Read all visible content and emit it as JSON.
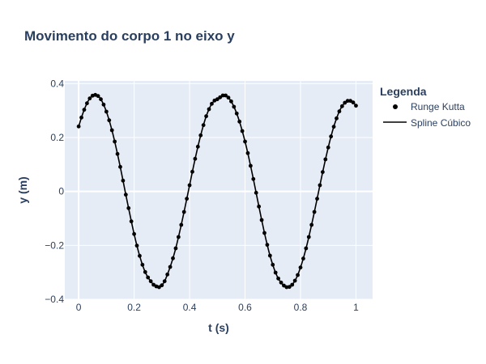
{
  "chart_data": {
    "type": "line",
    "title": "Movimento do corpo 1 no eixo y",
    "xlabel": "t (s)",
    "ylabel": "y (m)",
    "xlim": [
      -0.05,
      1.06
    ],
    "ylim": [
      -0.4,
      0.41
    ],
    "xticks": [
      0,
      0.2,
      0.4,
      0.6,
      0.8,
      1
    ],
    "xtick_labels": [
      "0",
      "0.2",
      "0.4",
      "0.6",
      "0.8",
      "1"
    ],
    "yticks": [
      -0.4,
      -0.2,
      0,
      0.2,
      0.4
    ],
    "ytick_labels": [
      "−0.4",
      "−0.2",
      "0",
      "0.2",
      "0.4"
    ],
    "grid": true,
    "legend": {
      "title": "Legenda",
      "placement": "top-right"
    },
    "colors": {
      "plot_background": "#e5ecf6",
      "gridline": "#ffffff",
      "series": "#000000",
      "text": "#2a3f5f"
    },
    "series": [
      {
        "name": "Runge Kutta",
        "mode": "markers",
        "x": [
          0.0,
          0.01,
          0.02,
          0.03,
          0.04,
          0.05,
          0.06,
          0.07,
          0.08,
          0.09,
          0.1,
          0.11,
          0.12,
          0.13,
          0.14,
          0.15,
          0.16,
          0.17,
          0.18,
          0.19,
          0.2,
          0.21,
          0.22,
          0.23,
          0.24,
          0.25,
          0.26,
          0.27,
          0.28,
          0.29,
          0.3,
          0.31,
          0.32,
          0.33,
          0.34,
          0.35,
          0.36,
          0.37,
          0.38,
          0.39,
          0.4,
          0.41,
          0.42,
          0.43,
          0.44,
          0.45,
          0.46,
          0.47,
          0.48,
          0.49,
          0.5,
          0.51,
          0.52,
          0.53,
          0.54,
          0.55,
          0.56,
          0.57,
          0.58,
          0.59,
          0.6,
          0.61,
          0.62,
          0.63,
          0.64,
          0.65,
          0.66,
          0.67,
          0.68,
          0.69,
          0.7,
          0.71,
          0.72,
          0.73,
          0.74,
          0.75,
          0.76,
          0.77,
          0.78,
          0.79,
          0.8,
          0.81,
          0.82,
          0.83,
          0.84,
          0.85,
          0.86,
          0.87,
          0.88,
          0.89,
          0.9,
          0.91,
          0.92,
          0.93,
          0.94,
          0.95,
          0.96,
          0.97,
          0.98,
          0.99,
          1.0
        ],
        "y": [
          0.241,
          0.274,
          0.303,
          0.327,
          0.345,
          0.355,
          0.358,
          0.354,
          0.342,
          0.322,
          0.296,
          0.264,
          0.227,
          0.185,
          0.139,
          0.091,
          0.04,
          -0.012,
          -0.062,
          -0.111,
          -0.158,
          -0.201,
          -0.239,
          -0.272,
          -0.299,
          -0.319,
          -0.333,
          -0.346,
          -0.352,
          -0.355,
          -0.348,
          -0.333,
          -0.308,
          -0.28,
          -0.248,
          -0.211,
          -0.169,
          -0.124,
          -0.076,
          -0.027,
          0.023,
          0.073,
          0.121,
          0.166,
          0.208,
          0.246,
          0.279,
          0.305,
          0.325,
          0.337,
          0.342,
          0.349,
          0.356,
          0.356,
          0.348,
          0.334,
          0.314,
          0.289,
          0.259,
          0.224,
          0.185,
          0.142,
          0.095,
          0.046,
          -0.005,
          -0.056,
          -0.106,
          -0.154,
          -0.198,
          -0.238,
          -0.272,
          -0.301,
          -0.323,
          -0.338,
          -0.349,
          -0.355,
          -0.354,
          -0.346,
          -0.331,
          -0.31,
          -0.282,
          -0.249,
          -0.211,
          -0.169,
          -0.124,
          -0.076,
          -0.027,
          0.023,
          0.072,
          0.119,
          0.163,
          0.204,
          0.24,
          0.271,
          0.297,
          0.316,
          0.329,
          0.336,
          0.336,
          0.33,
          0.318
        ]
      },
      {
        "name": "Spline Cúbico",
        "mode": "lines"
      }
    ]
  }
}
